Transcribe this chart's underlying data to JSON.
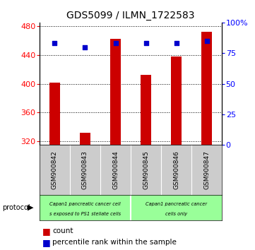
{
  "title": "GDS5099 / ILMN_1722583",
  "samples": [
    "GSM900842",
    "GSM900843",
    "GSM900844",
    "GSM900845",
    "GSM900846",
    "GSM900847"
  ],
  "counts": [
    402,
    332,
    462,
    412,
    438,
    472
  ],
  "percentiles": [
    83,
    80,
    83,
    83,
    83,
    85
  ],
  "bar_bottom": 315,
  "ylim_left": [
    315,
    485
  ],
  "ylim_right": [
    0,
    100
  ],
  "yticks_left": [
    320,
    360,
    400,
    440,
    480
  ],
  "yticks_right": [
    0,
    25,
    50,
    75,
    100
  ],
  "bar_color": "#cc0000",
  "dot_color": "#0000cc",
  "protocol_color": "#99ff99",
  "xlabel_area_color": "#cccccc",
  "title_fontsize": 10,
  "tick_fontsize": 8,
  "bar_width": 0.35,
  "group1_line1": "Capan1 pancreatic cancer cell",
  "group1_line2": "s exposed to PS1 stellate cells",
  "group2_line1": "Capan1 pancreatic cancer",
  "group2_line2": "cells only",
  "legend_count": "count",
  "legend_percentile": "percentile rank within the sample",
  "protocol_text": "protocol"
}
